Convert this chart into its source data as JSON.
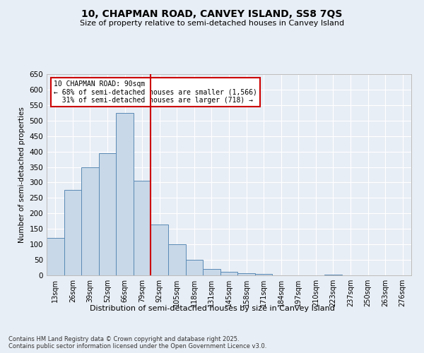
{
  "title": "10, CHAPMAN ROAD, CANVEY ISLAND, SS8 7QS",
  "subtitle": "Size of property relative to semi-detached houses in Canvey Island",
  "xlabel": "Distribution of semi-detached houses by size in Canvey Island",
  "ylabel": "Number of semi-detached properties",
  "bin_labels": [
    "13sqm",
    "26sqm",
    "39sqm",
    "52sqm",
    "66sqm",
    "79sqm",
    "92sqm",
    "105sqm",
    "118sqm",
    "131sqm",
    "145sqm",
    "158sqm",
    "171sqm",
    "184sqm",
    "197sqm",
    "210sqm",
    "223sqm",
    "237sqm",
    "250sqm",
    "263sqm",
    "276sqm"
  ],
  "hist_values": [
    120,
    275,
    350,
    395,
    525,
    305,
    165,
    100,
    50,
    20,
    12,
    7,
    5,
    0,
    0,
    0,
    3,
    0,
    0,
    0,
    0
  ],
  "property_label": "10 CHAPMAN ROAD: 90sqm",
  "pct_smaller": "68% of semi-detached houses are smaller (1,566)",
  "pct_larger": "31% of semi-detached houses are larger (718)",
  "marker_bin_index": 6,
  "bar_color": "#c8d8e8",
  "bar_edge_color": "#5a8ab5",
  "marker_color": "#cc0000",
  "bg_color": "#e8eef5",
  "grid_color": "#ffffff",
  "ylim": [
    0,
    650
  ],
  "yticks": [
    0,
    50,
    100,
    150,
    200,
    250,
    300,
    350,
    400,
    450,
    500,
    550,
    600,
    650
  ],
  "footnote": "Contains HM Land Registry data © Crown copyright and database right 2025.\nContains public sector information licensed under the Open Government Licence v3.0."
}
